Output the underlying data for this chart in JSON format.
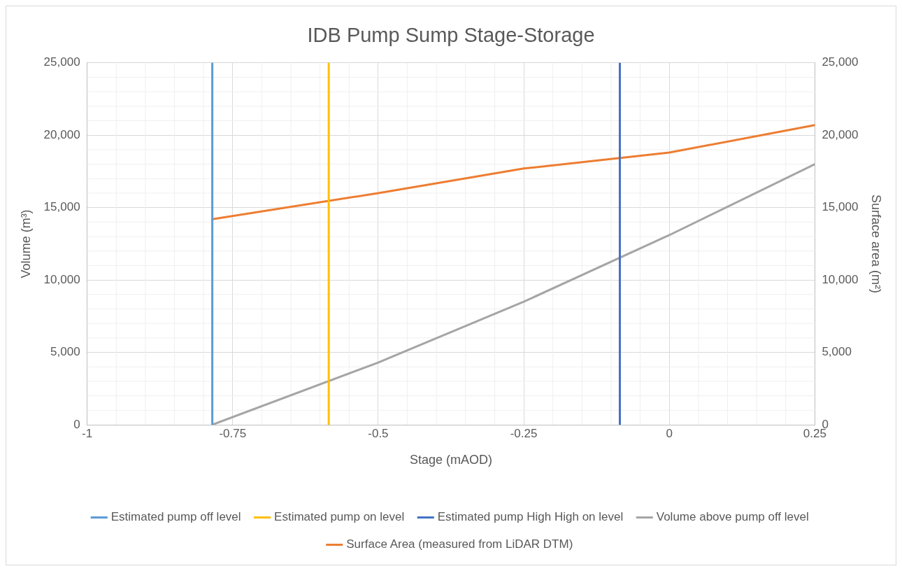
{
  "chart_data": {
    "type": "line",
    "title": "IDB Pump Sump Stage-Storage",
    "xlabel": "Stage (mAOD)",
    "ylabel": "Volume (m³)",
    "y2label": "Surface area (m²)",
    "xlim": [
      -1,
      0.25
    ],
    "xticks": [
      -1,
      -0.75,
      -0.5,
      -0.25,
      0,
      0.25
    ],
    "ylim": [
      0,
      25000
    ],
    "yticks": [
      {
        "value": 0,
        "label": "0"
      },
      {
        "value": 5000,
        "label": "5,000"
      },
      {
        "value": 10000,
        "label": "10,000"
      },
      {
        "value": 15000,
        "label": "15,000"
      },
      {
        "value": 20000,
        "label": "20,000"
      },
      {
        "value": 25000,
        "label": "25,000"
      }
    ],
    "y2lim": [
      0,
      25000
    ],
    "y2ticks": [
      {
        "value": 0,
        "label": "0"
      },
      {
        "value": 5000,
        "label": "5,000"
      },
      {
        "value": 10000,
        "label": "10,000"
      },
      {
        "value": 15000,
        "label": "15,000"
      },
      {
        "value": 20000,
        "label": "20,000"
      },
      {
        "value": 25000,
        "label": "25,000"
      }
    ],
    "grid": true,
    "legend": "bottom",
    "marker": "none",
    "line_style": "solid",
    "series": [
      {
        "name": "Estimated pump off level",
        "color": "#5b9bd5",
        "x": [
          -0.785,
          -0.785
        ],
        "values": [
          0,
          25000
        ]
      },
      {
        "name": "Estimated pump on level",
        "color": "#ffc000",
        "x": [
          -0.585,
          -0.585
        ],
        "values": [
          0,
          25000
        ]
      },
      {
        "name": "Estimated pump High High on level",
        "color": "#4472c4",
        "x": [
          -0.085,
          -0.085
        ],
        "values": [
          0,
          25000
        ]
      },
      {
        "name": "Volume above pump off level",
        "color": "#a5a5a5",
        "x": [
          -0.785,
          -0.5,
          -0.25,
          0,
          0.25
        ],
        "values": [
          0,
          4300,
          8500,
          13100,
          18000
        ]
      },
      {
        "name": "Surface Area (measured from LiDAR DTM)",
        "color": "#ed7d31",
        "axis": "y2",
        "x": [
          -0.785,
          -0.5,
          -0.25,
          0,
          0.25
        ],
        "values": [
          14200,
          16000,
          17700,
          18800,
          20700
        ]
      }
    ]
  }
}
